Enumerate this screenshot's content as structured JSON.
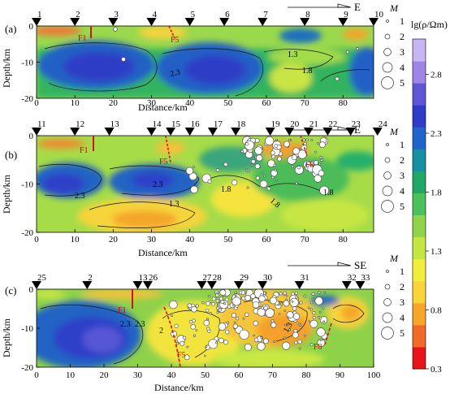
{
  "figure": {
    "axis_labels": {
      "depth": "Depth/km",
      "distance": "Distance/km"
    },
    "colorbar": {
      "title": "lg(ρ/Ωm)",
      "ticks": [
        "2.8",
        "2.3",
        "1.8",
        "1.3",
        "0.8",
        "0.3"
      ],
      "tick_values": [
        2.8,
        2.3,
        1.8,
        1.3,
        0.8,
        0.3
      ],
      "range": [
        0.3,
        3.1
      ],
      "colors": [
        "#e8141b",
        "#f26a2a",
        "#f7a52b",
        "#fbd43b",
        "#f2ee3d",
        "#c5e542",
        "#8fd44a",
        "#4cc05a",
        "#21a866",
        "#1890a4",
        "#1f64c8",
        "#2f3cc8",
        "#5f56d6",
        "#9d86e6",
        "#c7b6f4"
      ]
    },
    "legend_title": "M",
    "legend_labels": [
      "1",
      "2",
      "3",
      "4",
      "5"
    ],
    "panels": [
      {
        "id": "a",
        "label": "(a)",
        "direction": "E",
        "y_ticks": [
          "0",
          "-10",
          "-20"
        ],
        "x_ticks": [
          "0",
          "10",
          "20",
          "30",
          "40",
          "50",
          "60",
          "70",
          "80"
        ],
        "x_range": [
          0,
          88
        ],
        "stations": [
          "1",
          "2",
          "3",
          "4",
          "5",
          "6",
          "7",
          "8",
          "9",
          "10"
        ],
        "station_km": [
          0,
          10,
          20,
          30,
          40,
          49,
          59,
          70,
          80,
          88
        ],
        "contour_labels": [
          "2.3",
          "1.8",
          "1.3"
        ],
        "faults": [
          "F1",
          "F5"
        ]
      },
      {
        "id": "b",
        "label": "(b)",
        "direction": "E",
        "y_ticks": [
          "0",
          "-10",
          "-20"
        ],
        "x_ticks": [
          "0",
          "10",
          "20",
          "30",
          "40",
          "50",
          "60",
          "70",
          "80"
        ],
        "x_range": [
          0,
          88
        ],
        "stations": [
          "11",
          "12",
          "13",
          "14",
          "15",
          "16",
          "17",
          "18",
          "19",
          "20",
          "21",
          "22",
          "23",
          "24"
        ],
        "station_km": [
          0,
          10,
          19,
          30,
          35,
          40,
          46,
          52,
          61,
          66,
          71,
          76,
          82,
          89
        ],
        "contour_labels": [
          "2.3",
          "2.3",
          "1.3",
          "1.8",
          "1.8",
          "1.8"
        ],
        "faults": [
          "F1",
          "F5",
          "F8"
        ]
      },
      {
        "id": "c",
        "label": "(c)",
        "direction": "SE",
        "y_ticks": [
          "0",
          "-10",
          "-20"
        ],
        "x_ticks": [
          "0",
          "10",
          "20",
          "30",
          "40",
          "50",
          "60",
          "70",
          "80",
          "90",
          "100"
        ],
        "x_range": [
          0,
          100
        ],
        "stations": [
          "25",
          "2",
          "13",
          "26",
          "27",
          "28",
          "29",
          "30",
          "31",
          "32",
          "33"
        ],
        "station_km": [
          0,
          15,
          30,
          33,
          49,
          52,
          60,
          67,
          78,
          92,
          96
        ],
        "contour_labels": [
          "2.3",
          "2",
          "2.3",
          "1.3"
        ],
        "faults": [
          "F1",
          "F5",
          "F8"
        ]
      }
    ]
  }
}
